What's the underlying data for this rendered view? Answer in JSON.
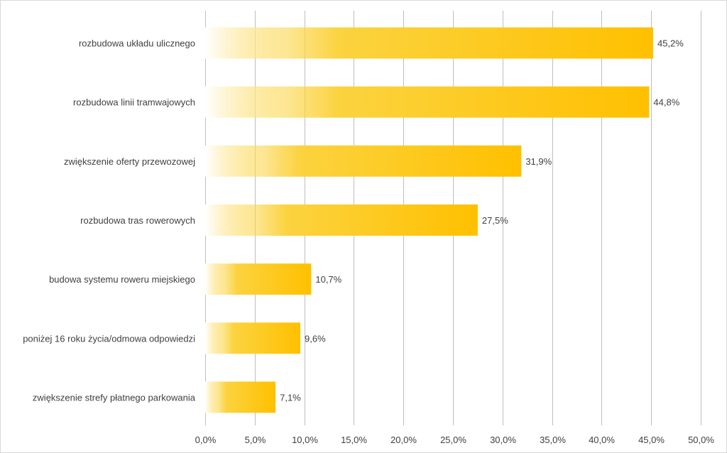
{
  "chart_data": {
    "type": "bar",
    "orientation": "horizontal",
    "categories": [
      "rozbudowa układu ulicznego",
      "rozbudowa linii tramwajowych",
      "zwiększenie oferty przewozowej",
      "rozbudowa tras rowerowych",
      "budowa systemu roweru miejskiego",
      "poniżej 16 roku życia/odmowa odpowiedzi",
      "zwiększenie strefy płatnego parkowania"
    ],
    "values": [
      45.2,
      44.8,
      31.9,
      27.5,
      10.7,
      9.6,
      7.1
    ],
    "value_labels": [
      "45,2%",
      "44,8%",
      "31,9%",
      "27,5%",
      "10,7%",
      "9,6%",
      "7,1%"
    ],
    "xlim": [
      0,
      50
    ],
    "x_ticks": [
      0,
      5,
      10,
      15,
      20,
      25,
      30,
      35,
      40,
      45,
      50
    ],
    "x_tick_labels": [
      "0,0%",
      "5,0%",
      "10,0%",
      "15,0%",
      "20,0%",
      "25,0%",
      "30,0%",
      "35,0%",
      "40,0%",
      "45,0%",
      "50,0%"
    ],
    "title": "",
    "xlabel": "",
    "ylabel": "",
    "grid": "vertical",
    "legend": "none",
    "colors": {
      "bar_start": "#ffffff",
      "bar_mid": "#fbd33f",
      "bar_end": "#ffc000",
      "grid": "#bfbfbf",
      "text": "#404040"
    }
  }
}
